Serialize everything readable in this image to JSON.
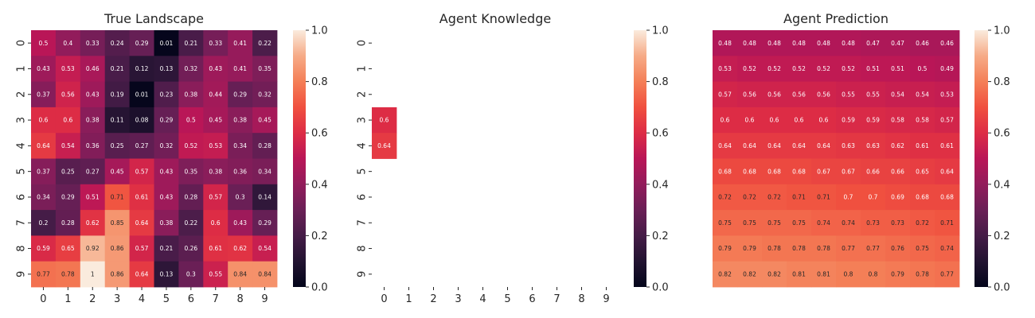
{
  "chart_data": [
    {
      "type": "heatmap",
      "title": "True Landscape",
      "x_ticks": [
        "0",
        "1",
        "2",
        "3",
        "4",
        "5",
        "6",
        "7",
        "8",
        "9"
      ],
      "y_ticks": [
        "0",
        "1",
        "2",
        "3",
        "4",
        "5",
        "6",
        "7",
        "8",
        "9"
      ],
      "show_ticks": true,
      "colorbar": {
        "range": [
          0,
          1
        ],
        "ticks": [
          "0.0",
          "0.2",
          "0.4",
          "0.6",
          "0.8",
          "1.0"
        ]
      },
      "colormap": "rocket",
      "values": [
        [
          0.5,
          0.4,
          0.33,
          0.24,
          0.29,
          0.01,
          0.21,
          0.33,
          0.41,
          0.22
        ],
        [
          0.43,
          0.53,
          0.46,
          0.21,
          0.12,
          0.13,
          0.32,
          0.43,
          0.41,
          0.35
        ],
        [
          0.37,
          0.56,
          0.43,
          0.19,
          0.01,
          0.23,
          0.38,
          0.44,
          0.29,
          0.32
        ],
        [
          0.6,
          0.6,
          0.38,
          0.11,
          0.08,
          0.29,
          0.5,
          0.45,
          0.38,
          0.45
        ],
        [
          0.64,
          0.54,
          0.36,
          0.25,
          0.27,
          0.32,
          0.52,
          0.53,
          0.34,
          0.28
        ],
        [
          0.37,
          0.25,
          0.27,
          0.45,
          0.57,
          0.43,
          0.35,
          0.38,
          0.36,
          0.34
        ],
        [
          0.34,
          0.29,
          0.51,
          0.71,
          0.61,
          0.43,
          0.28,
          0.57,
          0.3,
          0.14
        ],
        [
          0.2,
          0.28,
          0.62,
          0.85,
          0.64,
          0.38,
          0.22,
          0.6,
          0.43,
          0.29
        ],
        [
          0.59,
          0.65,
          0.92,
          0.86,
          0.57,
          0.21,
          0.26,
          0.61,
          0.62,
          0.54
        ],
        [
          0.77,
          0.78,
          1,
          0.86,
          0.64,
          0.13,
          0.3,
          0.55,
          0.84,
          0.84
        ]
      ]
    },
    {
      "type": "heatmap",
      "title": "Agent Knowledge",
      "x_ticks": [
        "0",
        "1",
        "2",
        "3",
        "4",
        "5",
        "6",
        "7",
        "8",
        "9"
      ],
      "y_ticks": [
        "0",
        "1",
        "2",
        "3",
        "4",
        "5",
        "6",
        "7",
        "8",
        "9"
      ],
      "show_ticks": true,
      "colorbar": {
        "range": [
          0,
          1
        ],
        "ticks": [
          "0.0",
          "0.2",
          "0.4",
          "0.6",
          "0.8",
          "1.0"
        ]
      },
      "colormap": "rocket",
      "values": [
        [
          null,
          null,
          null,
          null,
          null,
          null,
          null,
          null,
          null,
          null
        ],
        [
          null,
          null,
          null,
          null,
          null,
          null,
          null,
          null,
          null,
          null
        ],
        [
          null,
          null,
          null,
          null,
          null,
          null,
          null,
          null,
          null,
          null
        ],
        [
          0.6,
          null,
          null,
          null,
          null,
          null,
          null,
          null,
          null,
          null
        ],
        [
          0.64,
          null,
          null,
          null,
          null,
          null,
          null,
          null,
          null,
          null
        ],
        [
          null,
          null,
          null,
          null,
          null,
          null,
          null,
          null,
          null,
          null
        ],
        [
          null,
          null,
          null,
          null,
          null,
          null,
          null,
          null,
          null,
          null
        ],
        [
          null,
          null,
          null,
          null,
          null,
          null,
          null,
          null,
          null,
          null
        ],
        [
          null,
          null,
          null,
          null,
          null,
          null,
          null,
          null,
          null,
          null
        ],
        [
          null,
          null,
          null,
          null,
          null,
          null,
          null,
          null,
          null,
          null
        ]
      ]
    },
    {
      "type": "heatmap",
      "title": "Agent Prediction",
      "x_ticks": [],
      "y_ticks": [],
      "show_ticks": false,
      "colorbar": {
        "range": [
          0,
          1
        ],
        "ticks": [
          "0.0",
          "0.2",
          "0.4",
          "0.6",
          "0.8",
          "1.0"
        ]
      },
      "colormap": "rocket",
      "values": [
        [
          0.48,
          0.48,
          0.48,
          0.48,
          0.48,
          0.48,
          0.47,
          0.47,
          0.46,
          0.46
        ],
        [
          0.53,
          0.52,
          0.52,
          0.52,
          0.52,
          0.52,
          0.51,
          0.51,
          0.5,
          0.49
        ],
        [
          0.57,
          0.56,
          0.56,
          0.56,
          0.56,
          0.55,
          0.55,
          0.54,
          0.54,
          0.53
        ],
        [
          0.6,
          0.6,
          0.6,
          0.6,
          0.6,
          0.59,
          0.59,
          0.58,
          0.58,
          0.57
        ],
        [
          0.64,
          0.64,
          0.64,
          0.64,
          0.64,
          0.63,
          0.63,
          0.62,
          0.61,
          0.61
        ],
        [
          0.68,
          0.68,
          0.68,
          0.68,
          0.67,
          0.67,
          0.66,
          0.66,
          0.65,
          0.64
        ],
        [
          0.72,
          0.72,
          0.72,
          0.71,
          0.71,
          0.7,
          0.7,
          0.69,
          0.68,
          0.68
        ],
        [
          0.75,
          0.75,
          0.75,
          0.75,
          0.74,
          0.74,
          0.73,
          0.73,
          0.72,
          0.71
        ],
        [
          0.79,
          0.79,
          0.78,
          0.78,
          0.78,
          0.77,
          0.77,
          0.76,
          0.75,
          0.74
        ],
        [
          0.82,
          0.82,
          0.82,
          0.81,
          0.81,
          0.8,
          0.8,
          0.79,
          0.78,
          0.77
        ]
      ]
    }
  ]
}
